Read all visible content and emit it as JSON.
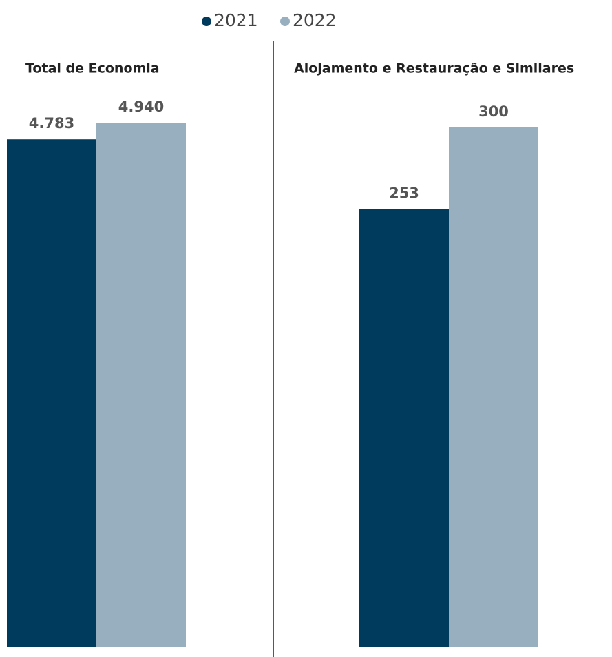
{
  "chart_data": {
    "type": "bar",
    "categories": [
      "Total de Economia",
      "Alojamento e Restauração e Similares"
    ],
    "ylim": [
      [
        0,
        4940
      ],
      [
        0,
        300
      ]
    ],
    "series": [
      {
        "name": "2021",
        "color": "#003a5c",
        "values": [
          4783,
          253
        ],
        "value_labels": [
          "4.783",
          "253"
        ]
      },
      {
        "name": "2022",
        "color": "#98afc0",
        "values": [
          4940,
          300
        ],
        "value_labels": [
          "4.940",
          "300"
        ]
      }
    ],
    "legend": "top"
  }
}
